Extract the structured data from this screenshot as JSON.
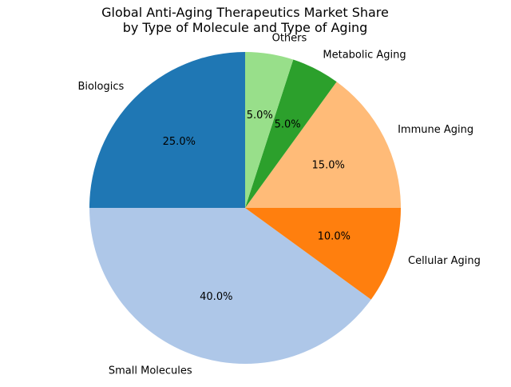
{
  "chart_data": {
    "type": "pie",
    "title_lines": [
      "Global Anti-Aging Therapeutics Market Share",
      "by Type of Molecule and Type of Aging"
    ],
    "start_angle_deg": 90,
    "direction": "counterclockwise",
    "slices": [
      {
        "label": "Biologics",
        "value": 25,
        "pct_label": "25.0%",
        "color": "#1f77b4"
      },
      {
        "label": "Small Molecules",
        "value": 40,
        "pct_label": "40.0%",
        "color": "#aec7e8"
      },
      {
        "label": "Cellular Aging",
        "value": 10,
        "pct_label": "10.0%",
        "color": "#ff7f0e"
      },
      {
        "label": "Immune Aging",
        "value": 15,
        "pct_label": "15.0%",
        "color": "#ffbb78"
      },
      {
        "label": "Metabolic Aging",
        "value": 5,
        "pct_label": "5.0%",
        "color": "#2ca02c"
      },
      {
        "label": "Others",
        "value": 5,
        "pct_label": "5.0%",
        "color": "#98df8a"
      }
    ]
  }
}
